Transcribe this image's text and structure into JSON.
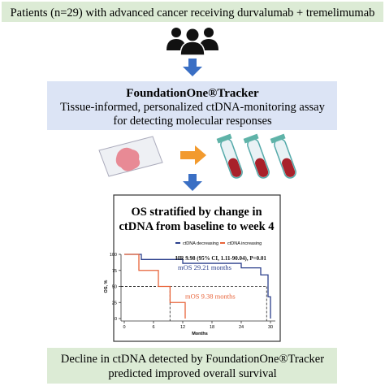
{
  "header": {
    "text": "Patients (n=29) with advanced cancer receiving durvalumab + tremelimumab"
  },
  "assay": {
    "title": "FoundationOne®Tracker",
    "lines": [
      "Tissue-informed, personalized ctDNA-monitoring assay",
      "for detecting molecular responses"
    ]
  },
  "chart": {
    "type": "line",
    "step": true,
    "title_lines": [
      "OS stratified by change in",
      "ctDNA from baseline to week 4"
    ],
    "xlabel": "Months",
    "ylabel": "OS, %",
    "xlim": [
      0,
      31
    ],
    "ylim": [
      0,
      100
    ],
    "xticks": [
      0,
      6,
      12,
      18,
      24,
      30
    ],
    "yticks": [
      0,
      25,
      50,
      75,
      100
    ],
    "series": [
      {
        "name": "ctDNA decreasing",
        "color": "#2b3f8c",
        "x": [
          0,
          3.5,
          12,
          24,
          28,
          29.5,
          30
        ],
        "values": [
          100,
          92,
          86,
          79,
          68,
          34,
          0
        ]
      },
      {
        "name": "ctDNA increasing",
        "color": "#e8643a",
        "x": [
          0,
          3,
          7,
          9.4,
          12.5
        ],
        "values": [
          100,
          75,
          50,
          25,
          0
        ]
      }
    ],
    "reference_lines": [
      {
        "x": 29.21,
        "y": 50
      },
      {
        "x": 9.38,
        "y": 50
      }
    ],
    "annotations": [
      {
        "text": "HR 9.98 (95% CI, 1.11-90.04), P=0.01",
        "x": 10.5,
        "y": 95
      },
      {
        "text": "mOS 29.21 months",
        "x": 11,
        "y": 80
      },
      {
        "text": "mOS 9.38 months",
        "x": 12.5,
        "y": 35
      }
    ]
  },
  "conclusion": {
    "lines": [
      "Decline in ctDNA detected by FoundationOne®Tracker",
      "predicted improved overall survival"
    ]
  }
}
